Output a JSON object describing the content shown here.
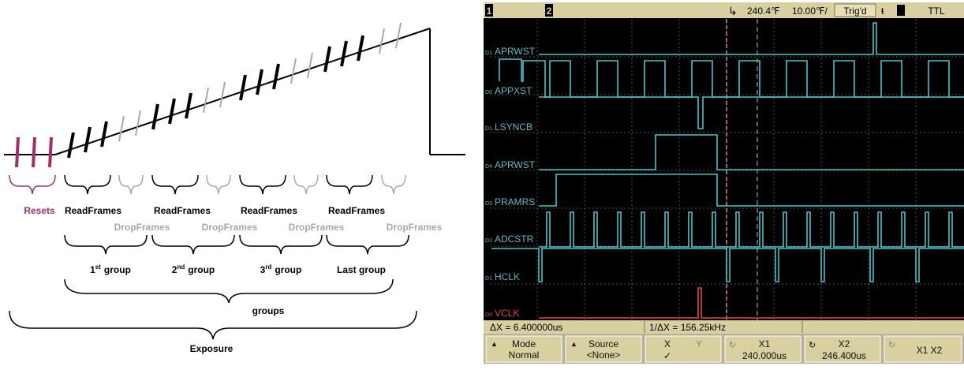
{
  "diagram": {
    "resets_label": "Resets",
    "groups": [
      {
        "read_label": "ReadFrames",
        "drop_label": "DropFrames",
        "ordinal_num": "1",
        "ordinal_sup": "st",
        "ordinal_word": "group"
      },
      {
        "read_label": "ReadFrames",
        "drop_label": "DropFrames",
        "ordinal_num": "2",
        "ordinal_sup": "nd",
        "ordinal_word": "group"
      },
      {
        "read_label": "ReadFrames",
        "drop_label": "DropFrames",
        "ordinal_num": "3",
        "ordinal_sup": "rd",
        "ordinal_word": "group"
      },
      {
        "read_label": "ReadFrames",
        "drop_label": "DropFrames",
        "ordinal_num": "",
        "ordinal_sup": "",
        "ordinal_word": "Last group"
      }
    ],
    "groups_label": "groups",
    "exposure_label": "Exposure",
    "colors": {
      "reset": "#a0306a",
      "read": "#000000",
      "drop": "#a8a8a8"
    }
  },
  "scope": {
    "top_bar": {
      "ch1_label": "1",
      "ch2_label": "2",
      "time_pos": "240.4℉",
      "time_div": "10.00℉/",
      "trig_status": "Trig'd",
      "trig_source": "TTL"
    },
    "channels": [
      {
        "prefix": "D",
        "sub": "1",
        "name": "APRWST"
      },
      {
        "prefix": "D",
        "sub": "0",
        "name": "APPXST"
      },
      {
        "prefix": "D",
        "sub": "1",
        "name": "LSYNCB"
      },
      {
        "prefix": "D",
        "sub": "4",
        "name": "APRWST"
      },
      {
        "prefix": "D",
        "sub": "3",
        "name": "PRAMRS"
      },
      {
        "prefix": "D",
        "sub": "2",
        "name": "ADCSTR"
      },
      {
        "prefix": "D",
        "sub": "1",
        "name": "HCLK"
      },
      {
        "prefix": "D",
        "sub": "0",
        "name": "VCLK"
      }
    ],
    "measurements": {
      "delta_x": "ΔX = 6.400000us",
      "inv_delta_x": "1/ΔX = 156.25kHz"
    },
    "softkeys": [
      {
        "line1": "Mode",
        "line2": "Normal"
      },
      {
        "line1": "Source",
        "line2": "<None>"
      },
      {
        "line1": "X",
        "line1b": "Y",
        "line2": "✓"
      },
      {
        "line1": "X1",
        "line2": "240.000us"
      },
      {
        "line1": "X2",
        "line2": "246.400us"
      },
      {
        "line1": "X1 X2",
        "line2": ""
      }
    ],
    "colors": {
      "trace": "#4ec3c8",
      "vclk": "#e04848",
      "cursor": "#d08a8a",
      "grid": "#505050",
      "label": "#5fb8c8",
      "bar": "#d8d0a0"
    }
  }
}
